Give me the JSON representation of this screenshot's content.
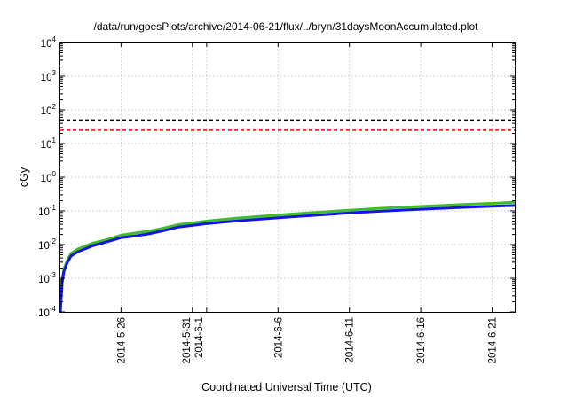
{
  "chart_data": {
    "type": "line",
    "title": "/data/run/goesPlots/archive/2014-06-21/flux/../bryn/31daysMoonAccumulated.plot",
    "xlabel": "Coordinated Universal Time (UTC)",
    "ylabel": "cGy",
    "y_scale": "log",
    "ylim": [
      0.0001,
      10000
    ],
    "xlim": [
      "2014-05-21T18:00",
      "2014-06-22T14:00"
    ],
    "y_ticks": [
      {
        "value": 0.0001,
        "base": "10",
        "exp": "-4"
      },
      {
        "value": 0.001,
        "base": "10",
        "exp": "-3"
      },
      {
        "value": 0.01,
        "base": "10",
        "exp": "-2"
      },
      {
        "value": 0.1,
        "base": "10",
        "exp": "-1"
      },
      {
        "value": 1,
        "base": "10",
        "exp": "0"
      },
      {
        "value": 10,
        "base": "10",
        "exp": "1"
      },
      {
        "value": 100,
        "base": "10",
        "exp": "2"
      },
      {
        "value": 1000,
        "base": "10",
        "exp": "3"
      },
      {
        "value": 10000,
        "base": "10",
        "exp": "4"
      }
    ],
    "x_ticks": [
      {
        "date": "2014-05-26",
        "lines": [
          "2014-5-26"
        ]
      },
      {
        "date": "2014-05-31",
        "lines": [
          "2014-5-31",
          "2014-6-1"
        ]
      },
      {
        "date": "2014-06-06",
        "lines": [
          "2014-6-6"
        ]
      },
      {
        "date": "2014-06-11",
        "lines": [
          "2014-6-11"
        ]
      },
      {
        "date": "2014-06-16",
        "lines": [
          "2014-6-16"
        ]
      },
      {
        "date": "2014-06-21",
        "lines": [
          "2014-6-21"
        ]
      }
    ],
    "x_grid_dates": [
      "2014-05-26",
      "2014-05-31",
      "2014-06-01",
      "2014-06-06",
      "2014-06-11",
      "2014-06-16",
      "2014-06-21"
    ],
    "grid": true,
    "thresholds": [
      {
        "value": 50,
        "color": "#000000",
        "style": "dashed"
      },
      {
        "value": 25,
        "color": "#ff0000",
        "style": "dashed"
      }
    ],
    "series": [
      {
        "color": "#3cbe28",
        "x": [
          "2014-05-21T18:00",
          "2014-05-21T21:00",
          "2014-05-22T00:00",
          "2014-05-22T06:00",
          "2014-05-22T12:00",
          "2014-05-23T00:00",
          "2014-05-23T12:00",
          "2014-05-24T00:00",
          "2014-05-25T00:00",
          "2014-05-26T00:00",
          "2014-05-27T00:00",
          "2014-05-28T00:00",
          "2014-05-29T00:00",
          "2014-05-30T00:00",
          "2014-05-31T00:00",
          "2014-06-01T00:00",
          "2014-06-02T00:00",
          "2014-06-03T00:00",
          "2014-06-05T00:00",
          "2014-06-07T00:00",
          "2014-06-09T00:00",
          "2014-06-11T00:00",
          "2014-06-13T00:00",
          "2014-06-15T00:00",
          "2014-06-17T00:00",
          "2014-06-19T00:00",
          "2014-06-21T00:00",
          "2014-06-22T14:00"
        ],
        "y": [
          0.00012,
          0.0009,
          0.0019,
          0.0035,
          0.0055,
          0.0075,
          0.009,
          0.011,
          0.014,
          0.019,
          0.022,
          0.025,
          0.031,
          0.039,
          0.044,
          0.05,
          0.055,
          0.06,
          0.07,
          0.081,
          0.092,
          0.105,
          0.118,
          0.13,
          0.142,
          0.155,
          0.168,
          0.18
        ]
      },
      {
        "color": "#1414e6",
        "x": [
          "2014-05-21T18:00",
          "2014-05-21T21:00",
          "2014-05-22T00:00",
          "2014-05-22T06:00",
          "2014-05-22T12:00",
          "2014-05-23T00:00",
          "2014-05-23T12:00",
          "2014-05-24T00:00",
          "2014-05-25T00:00",
          "2014-05-26T00:00",
          "2014-05-27T00:00",
          "2014-05-28T00:00",
          "2014-05-29T00:00",
          "2014-05-30T00:00",
          "2014-05-31T00:00",
          "2014-06-01T00:00",
          "2014-06-02T00:00",
          "2014-06-03T00:00",
          "2014-06-05T00:00",
          "2014-06-07T00:00",
          "2014-06-09T00:00",
          "2014-06-11T00:00",
          "2014-06-13T00:00",
          "2014-06-15T00:00",
          "2014-06-17T00:00",
          "2014-06-19T00:00",
          "2014-06-21T00:00",
          "2014-06-22T14:00"
        ],
        "y": [
          0.0001,
          0.00075,
          0.0016,
          0.003,
          0.0046,
          0.0062,
          0.0075,
          0.0092,
          0.012,
          0.016,
          0.018,
          0.021,
          0.026,
          0.033,
          0.037,
          0.042,
          0.046,
          0.05,
          0.058,
          0.067,
          0.076,
          0.087,
          0.097,
          0.107,
          0.117,
          0.127,
          0.137,
          0.145
        ]
      }
    ]
  }
}
